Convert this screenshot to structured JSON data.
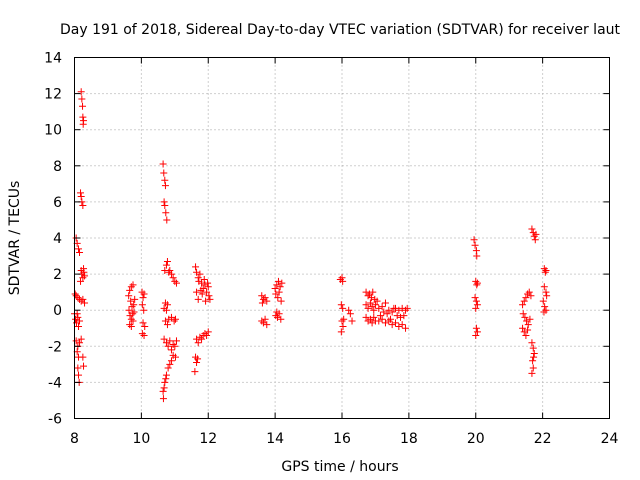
{
  "chart_data": {
    "type": "scatter",
    "title": "Day 191 of 2018, Sidereal Day-to-day VTEC variation (SDTVAR) for receiver laut",
    "xlabel": "GPS time / hours",
    "ylabel": "SDTVAR / TECUs",
    "xlim": [
      8,
      24
    ],
    "ylim": [
      -6,
      14
    ],
    "xticks": [
      8,
      10,
      12,
      14,
      16,
      18,
      20,
      22,
      24
    ],
    "yticks": [
      -6,
      -4,
      -2,
      0,
      2,
      4,
      6,
      8,
      10,
      12,
      14
    ],
    "grid": true,
    "marker": "+",
    "color": "#ff0000",
    "series": [
      {
        "name": "SDTVAR",
        "points": [
          [
            8.2,
            12.1
          ],
          [
            8.22,
            11.7
          ],
          [
            8.24,
            11.3
          ],
          [
            8.25,
            10.7
          ],
          [
            8.27,
            10.5
          ],
          [
            8.26,
            10.3
          ],
          [
            8.18,
            6.5
          ],
          [
            8.2,
            6.3
          ],
          [
            8.22,
            6.0
          ],
          [
            8.25,
            5.8
          ],
          [
            8.05,
            4.0
          ],
          [
            8.08,
            3.7
          ],
          [
            8.12,
            3.4
          ],
          [
            8.15,
            3.2
          ],
          [
            8.2,
            2.2
          ],
          [
            8.22,
            2.0
          ],
          [
            8.25,
            1.8
          ],
          [
            8.28,
            2.1
          ],
          [
            8.3,
            1.9
          ],
          [
            8.18,
            1.6
          ],
          [
            8.27,
            2.3
          ],
          [
            8.02,
            0.9
          ],
          [
            8.05,
            0.8
          ],
          [
            8.1,
            0.7
          ],
          [
            8.15,
            0.6
          ],
          [
            8.2,
            0.5
          ],
          [
            8.25,
            0.6
          ],
          [
            8.3,
            0.4
          ],
          [
            8.0,
            -0.2
          ],
          [
            8.03,
            -0.5
          ],
          [
            8.06,
            -0.7
          ],
          [
            8.1,
            -0.4
          ],
          [
            8.12,
            -0.9
          ],
          [
            8.15,
            -0.6
          ],
          [
            8.08,
            -0.2
          ],
          [
            8.05,
            -1.7
          ],
          [
            8.1,
            -2.0
          ],
          [
            8.15,
            -1.8
          ],
          [
            8.2,
            -1.6
          ],
          [
            8.08,
            -2.3
          ],
          [
            8.12,
            -2.6
          ],
          [
            8.1,
            -3.2
          ],
          [
            8.12,
            -3.6
          ],
          [
            8.14,
            -4.0
          ],
          [
            8.25,
            -2.6
          ],
          [
            8.27,
            -3.1
          ],
          [
            9.62,
            0.8
          ],
          [
            9.65,
            1.1
          ],
          [
            9.7,
            1.3
          ],
          [
            9.75,
            1.4
          ],
          [
            9.68,
            0.5
          ],
          [
            9.72,
            0.2
          ],
          [
            9.63,
            0.0
          ],
          [
            9.66,
            -0.3
          ],
          [
            9.7,
            -0.5
          ],
          [
            9.74,
            -0.2
          ],
          [
            9.77,
            0.3
          ],
          [
            9.8,
            0.6
          ],
          [
            9.65,
            -0.8
          ],
          [
            9.7,
            -0.9
          ],
          [
            9.75,
            -0.6
          ],
          [
            9.78,
            -0.1
          ],
          [
            10.02,
            1.0
          ],
          [
            10.05,
            0.7
          ],
          [
            10.08,
            0.9
          ],
          [
            10.03,
            0.3
          ],
          [
            10.07,
            0.0
          ],
          [
            10.05,
            -0.7
          ],
          [
            10.1,
            -0.9
          ],
          [
            10.08,
            -1.4
          ],
          [
            10.03,
            -1.3
          ],
          [
            10.65,
            8.1
          ],
          [
            10.67,
            7.6
          ],
          [
            10.7,
            7.2
          ],
          [
            10.72,
            6.9
          ],
          [
            10.68,
            6.0
          ],
          [
            10.7,
            5.8
          ],
          [
            10.73,
            5.4
          ],
          [
            10.76,
            5.0
          ],
          [
            10.7,
            2.2
          ],
          [
            10.75,
            2.5
          ],
          [
            10.78,
            2.7
          ],
          [
            10.85,
            2.2
          ],
          [
            10.9,
            2.0
          ],
          [
            10.95,
            1.8
          ],
          [
            11.0,
            1.6
          ],
          [
            11.05,
            1.5
          ],
          [
            10.82,
            2.1
          ],
          [
            10.68,
            0.1
          ],
          [
            10.72,
            0.4
          ],
          [
            10.75,
            0.0
          ],
          [
            10.78,
            0.3
          ],
          [
            10.72,
            -0.6
          ],
          [
            10.78,
            -0.8
          ],
          [
            10.82,
            -0.5
          ],
          [
            10.9,
            -0.4
          ],
          [
            10.98,
            -0.6
          ],
          [
            11.02,
            -0.5
          ],
          [
            10.68,
            -1.6
          ],
          [
            10.75,
            -1.8
          ],
          [
            10.8,
            -2.0
          ],
          [
            10.85,
            -1.7
          ],
          [
            10.9,
            -2.2
          ],
          [
            10.95,
            -1.9
          ],
          [
            11.0,
            -2.0
          ],
          [
            11.05,
            -1.7
          ],
          [
            11.02,
            -2.6
          ],
          [
            10.8,
            -3.2
          ],
          [
            10.85,
            -3.0
          ],
          [
            10.9,
            -2.8
          ],
          [
            10.95,
            -2.5
          ],
          [
            10.75,
            -3.6
          ],
          [
            10.7,
            -4.0
          ],
          [
            10.68,
            -4.3
          ],
          [
            10.65,
            -4.5
          ],
          [
            10.66,
            -4.9
          ],
          [
            10.73,
            -3.8
          ],
          [
            11.62,
            2.4
          ],
          [
            11.65,
            2.1
          ],
          [
            11.7,
            1.8
          ],
          [
            11.75,
            2.0
          ],
          [
            11.8,
            1.5
          ],
          [
            11.85,
            1.2
          ],
          [
            11.9,
            1.4
          ],
          [
            11.95,
            1.0
          ],
          [
            12.0,
            1.3
          ],
          [
            12.02,
            0.8
          ],
          [
            12.05,
            0.6
          ],
          [
            11.65,
            1.0
          ],
          [
            11.7,
            0.6
          ],
          [
            11.72,
            1.6
          ],
          [
            11.78,
            1.1
          ],
          [
            11.82,
            0.9
          ],
          [
            11.88,
            1.7
          ],
          [
            11.92,
            0.5
          ],
          [
            11.98,
            1.5
          ],
          [
            11.65,
            -1.6
          ],
          [
            11.7,
            -1.8
          ],
          [
            11.75,
            -1.5
          ],
          [
            11.85,
            -1.4
          ],
          [
            11.9,
            -1.3
          ],
          [
            11.95,
            -1.4
          ],
          [
            12.0,
            -1.2
          ],
          [
            11.8,
            -1.6
          ],
          [
            11.62,
            -2.6
          ],
          [
            11.65,
            -2.9
          ],
          [
            11.6,
            -3.4
          ],
          [
            11.68,
            -2.7
          ],
          [
            13.6,
            0.8
          ],
          [
            13.65,
            0.6
          ],
          [
            13.7,
            0.7
          ],
          [
            13.75,
            0.5
          ],
          [
            13.62,
            0.4
          ],
          [
            13.6,
            -0.6
          ],
          [
            13.65,
            -0.7
          ],
          [
            13.7,
            -0.5
          ],
          [
            13.75,
            -0.8
          ],
          [
            14.0,
            1.2
          ],
          [
            14.05,
            1.4
          ],
          [
            14.1,
            1.6
          ],
          [
            14.15,
            1.3
          ],
          [
            14.2,
            1.5
          ],
          [
            14.02,
            0.9
          ],
          [
            14.08,
            0.7
          ],
          [
            14.12,
            1.0
          ],
          [
            14.18,
            0.5
          ],
          [
            14.02,
            -0.3
          ],
          [
            14.07,
            -0.4
          ],
          [
            14.12,
            -0.2
          ],
          [
            14.17,
            -0.5
          ],
          [
            14.05,
            -0.1
          ],
          [
            15.95,
            1.7
          ],
          [
            16.0,
            1.8
          ],
          [
            16.02,
            1.6
          ],
          [
            15.98,
            0.3
          ],
          [
            16.02,
            0.1
          ],
          [
            16.0,
            -0.6
          ],
          [
            16.03,
            -0.9
          ],
          [
            15.98,
            -1.2
          ],
          [
            16.05,
            -0.5
          ],
          [
            16.2,
            0.0
          ],
          [
            16.25,
            -0.2
          ],
          [
            16.3,
            -0.6
          ],
          [
            16.72,
            1.0
          ],
          [
            16.78,
            0.8
          ],
          [
            16.82,
            0.9
          ],
          [
            16.88,
            0.7
          ],
          [
            16.92,
            1.0
          ],
          [
            16.98,
            0.6
          ],
          [
            16.72,
            0.3
          ],
          [
            16.78,
            0.1
          ],
          [
            16.85,
            0.4
          ],
          [
            16.9,
            0.2
          ],
          [
            16.95,
            0.0
          ],
          [
            17.0,
            0.3
          ],
          [
            16.72,
            -0.4
          ],
          [
            16.78,
            -0.6
          ],
          [
            16.85,
            -0.5
          ],
          [
            16.9,
            -0.7
          ],
          [
            16.95,
            -0.4
          ],
          [
            17.0,
            -0.6
          ],
          [
            17.05,
            0.5
          ],
          [
            17.1,
            0.1
          ],
          [
            17.15,
            -0.3
          ],
          [
            17.2,
            0.2
          ],
          [
            17.25,
            -0.1
          ],
          [
            17.3,
            0.4
          ],
          [
            17.35,
            -0.2
          ],
          [
            17.4,
            0.0
          ],
          [
            17.45,
            -0.5
          ],
          [
            17.5,
            -0.1
          ],
          [
            17.55,
            0.1
          ],
          [
            17.1,
            -0.6
          ],
          [
            17.2,
            -0.5
          ],
          [
            17.3,
            -0.7
          ],
          [
            17.4,
            -0.6
          ],
          [
            17.5,
            -0.8
          ],
          [
            17.6,
            -0.7
          ],
          [
            17.7,
            -0.9
          ],
          [
            17.8,
            -0.8
          ],
          [
            17.9,
            -1.0
          ],
          [
            17.6,
            0.1
          ],
          [
            17.7,
            0.0
          ],
          [
            17.8,
            0.1
          ],
          [
            17.9,
            0.0
          ],
          [
            17.95,
            0.1
          ],
          [
            17.65,
            -0.3
          ],
          [
            17.75,
            -0.4
          ],
          [
            17.85,
            -0.3
          ],
          [
            19.95,
            3.9
          ],
          [
            19.98,
            3.6
          ],
          [
            20.02,
            3.3
          ],
          [
            20.03,
            3.0
          ],
          [
            20.0,
            1.6
          ],
          [
            20.03,
            1.4
          ],
          [
            20.05,
            1.5
          ],
          [
            19.98,
            0.7
          ],
          [
            20.02,
            0.5
          ],
          [
            20.05,
            0.3
          ],
          [
            20.0,
            0.1
          ],
          [
            20.02,
            -1.0
          ],
          [
            20.05,
            -1.2
          ],
          [
            20.0,
            -1.4
          ],
          [
            21.4,
            0.3
          ],
          [
            21.45,
            0.5
          ],
          [
            21.5,
            0.7
          ],
          [
            21.55,
            0.9
          ],
          [
            21.6,
            1.0
          ],
          [
            21.65,
            0.8
          ],
          [
            21.42,
            -0.2
          ],
          [
            21.47,
            -0.4
          ],
          [
            21.52,
            -0.6
          ],
          [
            21.57,
            -0.8
          ],
          [
            21.62,
            -0.5
          ],
          [
            21.4,
            -1.0
          ],
          [
            21.45,
            -1.2
          ],
          [
            21.5,
            -1.4
          ],
          [
            21.55,
            -1.1
          ],
          [
            21.68,
            4.5
          ],
          [
            21.72,
            4.3
          ],
          [
            21.75,
            4.1
          ],
          [
            21.8,
            4.2
          ],
          [
            21.78,
            3.9
          ],
          [
            21.68,
            -1.8
          ],
          [
            21.72,
            -2.1
          ],
          [
            21.75,
            -2.4
          ],
          [
            21.7,
            -2.8
          ],
          [
            21.72,
            -3.2
          ],
          [
            21.68,
            -3.5
          ],
          [
            21.73,
            -2.6
          ],
          [
            22.05,
            2.3
          ],
          [
            22.08,
            2.1
          ],
          [
            22.1,
            2.2
          ],
          [
            22.05,
            1.3
          ],
          [
            22.1,
            1.0
          ],
          [
            22.12,
            0.8
          ],
          [
            22.02,
            0.5
          ],
          [
            22.06,
            0.2
          ],
          [
            22.1,
            0.0
          ],
          [
            22.04,
            -0.1
          ]
        ]
      }
    ]
  }
}
